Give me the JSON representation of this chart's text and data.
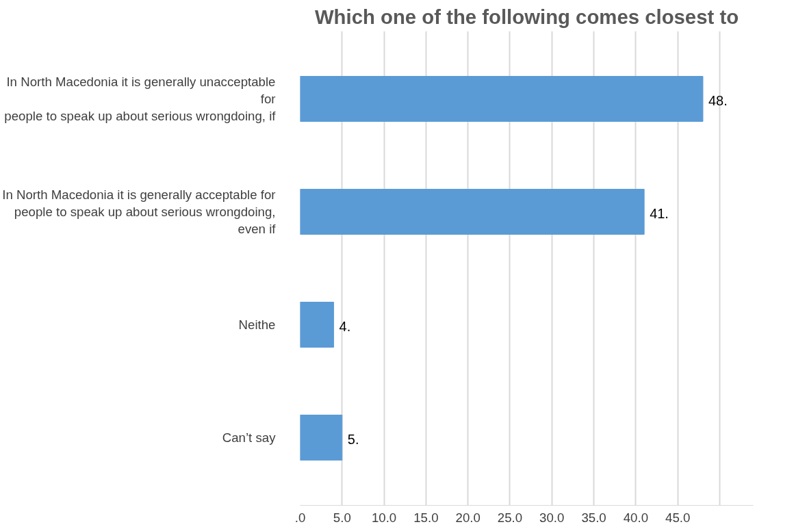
{
  "chart_data": {
    "type": "bar",
    "orientation": "horizontal",
    "title": "Which one of the following comes closest to",
    "categories": [
      "In North Macedonia it is generally unacceptable\nfor\npeople to speak up about serious wrongdoing, if",
      "In North Macedonia it is generally acceptable for\npeople to speak up about serious wrongdoing,\neven if",
      "Neithe",
      "Can’t say"
    ],
    "values": [
      48,
      41,
      4,
      5
    ],
    "value_labels": [
      "48.",
      "41.",
      "4.",
      "5."
    ],
    "color": "#5b9bd5",
    "xlim": [
      0,
      54
    ],
    "xticks": [
      {
        "value": 0,
        "label": ".0"
      },
      {
        "value": 5,
        "label": "5.0"
      },
      {
        "value": 10,
        "label": "10.0"
      },
      {
        "value": 15,
        "label": "15.0"
      },
      {
        "value": 20,
        "label": "20.0"
      },
      {
        "value": 25,
        "label": "25.0"
      },
      {
        "value": 30,
        "label": "30.0"
      },
      {
        "value": 35,
        "label": "35.0"
      },
      {
        "value": 40,
        "label": "40.0"
      },
      {
        "value": 45,
        "label": "45.0"
      },
      {
        "value": 50,
        "label": null
      }
    ],
    "grid": "x"
  }
}
